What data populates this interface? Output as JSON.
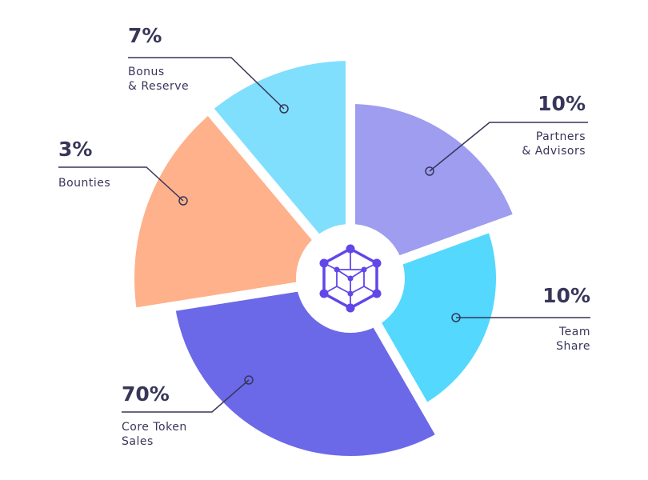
{
  "chart_data": {
    "type": "pie",
    "title": "",
    "slices": [
      {
        "label": "Partners\n& Advisors",
        "value": 10,
        "value_label": "10%",
        "color": "#9e9df0"
      },
      {
        "label": "Team\nShare",
        "value": 10,
        "value_label": "10%",
        "color": "#54d8fd"
      },
      {
        "label": "Core Token\nSales",
        "value": 70,
        "value_label": "70%",
        "color": "#6b69e8"
      },
      {
        "label": "Bounties",
        "value": 3,
        "value_label": "3%",
        "color": "#feb18a"
      },
      {
        "label": "Bonus\n& Reserve",
        "value": 7,
        "value_label": "7%",
        "color": "#80dffd"
      }
    ],
    "center_icon": "hexagon-network-icon",
    "text_color": "#373659"
  }
}
